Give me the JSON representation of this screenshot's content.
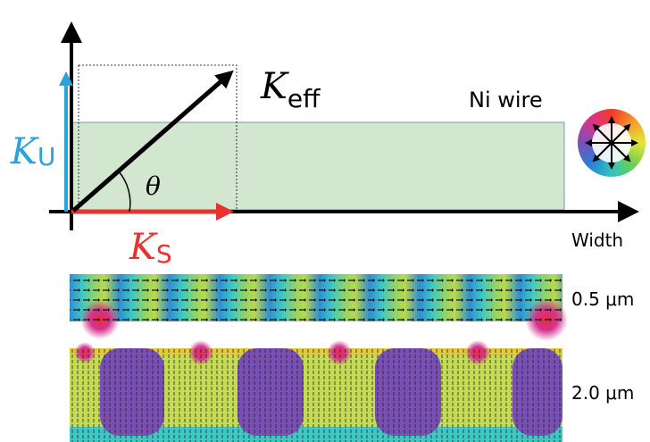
{
  "axes": {
    "vertical_label": {
      "symbol": "K",
      "subscript": "U"
    },
    "horizontal_label": {
      "symbol": "K",
      "subscript": "S"
    },
    "diagonal_label": {
      "symbol": "K",
      "subscript": "eff"
    },
    "angle_label": "θ",
    "width_label": "Width"
  },
  "wire_label": "Ni wire",
  "strips": [
    {
      "label": "0.5 μm"
    },
    {
      "label": "2.0 μm"
    }
  ]
}
